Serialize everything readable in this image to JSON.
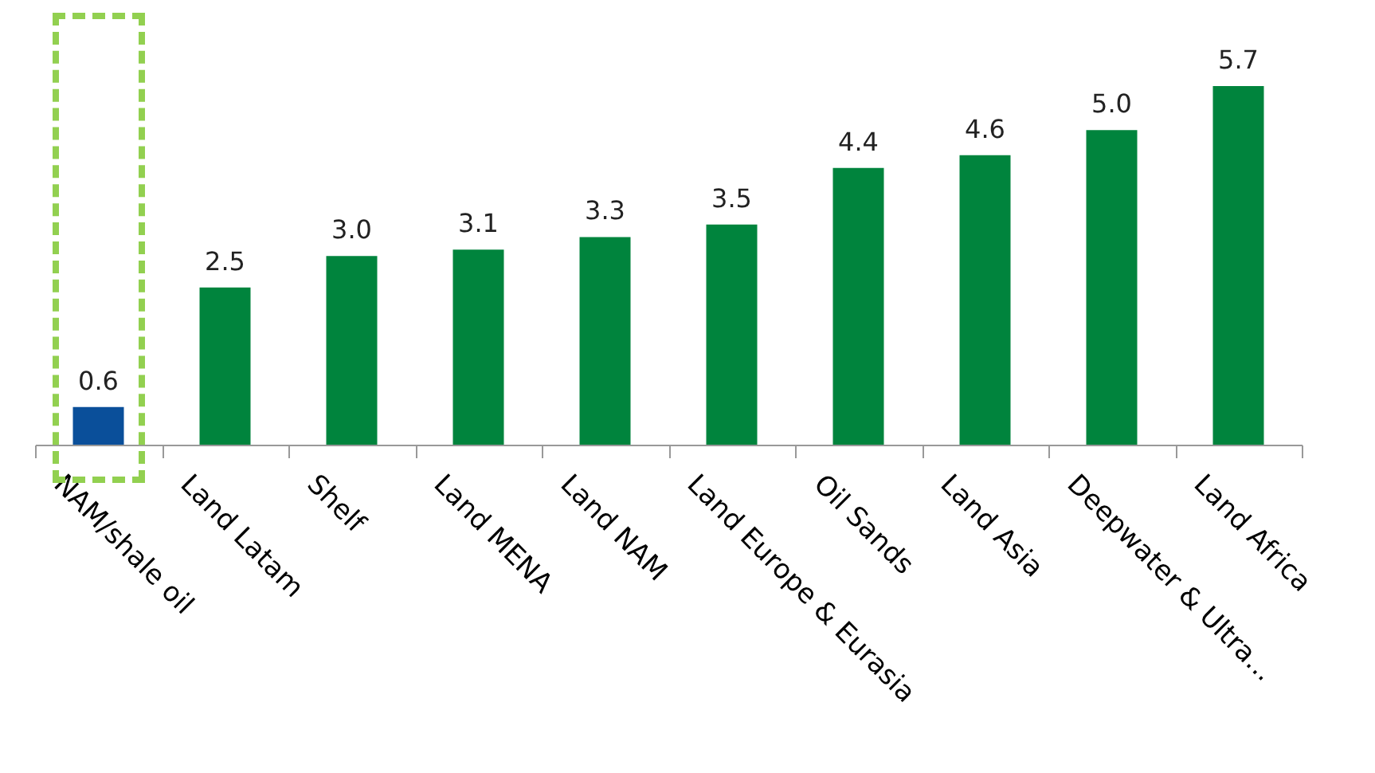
{
  "chart_data": {
    "type": "bar",
    "categories": [
      "NAM/shale oil",
      "Land Latam",
      "Shelf",
      "Land MENA",
      "Land NAM",
      "Land Europe & Eurasia",
      "Oil Sands",
      "Land Asia",
      "Deepwater & Ultra...",
      "Land Africa"
    ],
    "values": [
      0.6,
      2.5,
      3.0,
      3.1,
      3.3,
      3.5,
      4.4,
      4.6,
      5.0,
      5.7
    ],
    "colors": [
      "#0a4f9a",
      "#00843d",
      "#00843d",
      "#00843d",
      "#00843d",
      "#00843d",
      "#00843d",
      "#00843d",
      "#00843d",
      "#00843d"
    ],
    "value_labels": [
      "0.6",
      "2.5",
      "3.0",
      "3.1",
      "3.3",
      "3.5",
      "4.4",
      "4.6",
      "5.0",
      "5.7"
    ],
    "tick_labels": "x",
    "grid": false
  }
}
